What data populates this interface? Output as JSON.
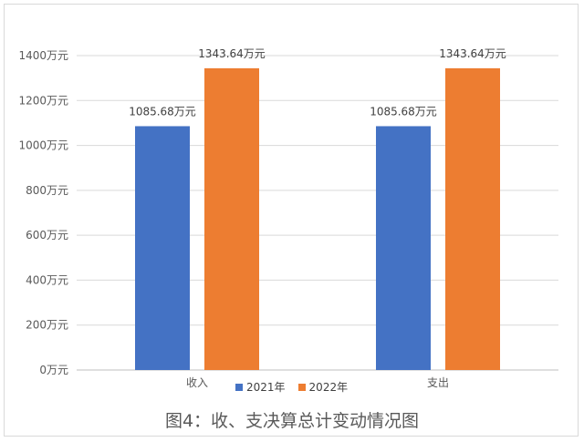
{
  "chart_data": {
    "type": "bar",
    "title": "",
    "caption": "图4：收、支决算总计变动情况图",
    "categories": [
      "收入",
      "支出"
    ],
    "series": [
      {
        "name": "2021年",
        "color": "#4472C4",
        "values": [
          1085.68,
          1085.68
        ],
        "labels": [
          "1085.68万元",
          "1085.68万元"
        ]
      },
      {
        "name": "2022年",
        "color": "#ED7D31",
        "values": [
          1343.64,
          1343.64
        ],
        "labels": [
          "1343.64万元",
          "1343.64万元"
        ]
      }
    ],
    "ylim": [
      0,
      1400
    ],
    "yticks": [
      0,
      200,
      400,
      600,
      800,
      1000,
      1200,
      1400
    ],
    "ytick_labels": [
      "0万元",
      "200万元",
      "400万元",
      "600万元",
      "800万元",
      "1000万元",
      "1200万元",
      "1400万元"
    ],
    "grid": true,
    "legend_position": "bottom"
  }
}
